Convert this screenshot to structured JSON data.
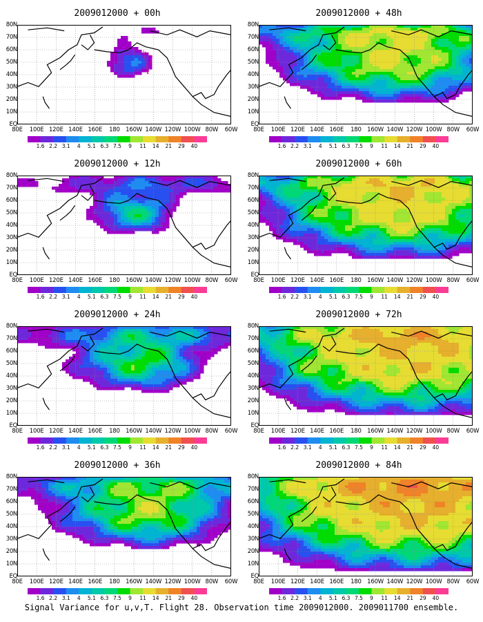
{
  "caption": "Signal Variance for u,v,T. Flight 28. Observation time 2009012000. 2009011700 ensemble.",
  "lat_labels": [
    "80N",
    "70N",
    "60N",
    "50N",
    "40N",
    "30N",
    "20N",
    "10N",
    "EQ"
  ],
  "lon_labels": [
    "80E",
    "100E",
    "120E",
    "140E",
    "160E",
    "180",
    "160W",
    "140W",
    "120W",
    "100W",
    "80W",
    "60W"
  ],
  "colorbar": {
    "labels": [
      "1.6",
      "2.2",
      "3.1",
      "4",
      "5.1",
      "6.3",
      "7.5",
      "9",
      "11",
      "14",
      "21",
      "29",
      "40"
    ],
    "colors": [
      "#a000c8",
      "#6e28dc",
      "#2850f0",
      "#1e8cf0",
      "#00b4d2",
      "#00c8aa",
      "#00d878",
      "#00dc00",
      "#a0e632",
      "#e6dc32",
      "#e6af2d",
      "#f08228",
      "#f05050",
      "#fa3c96"
    ]
  },
  "panels": [
    {
      "title": "2009012000 + 00h",
      "level": 0
    },
    {
      "title": "2009012000 + 48h",
      "level": 4
    },
    {
      "title": "2009012000 + 12h",
      "level": 1
    },
    {
      "title": "2009012000 + 60h",
      "level": 5
    },
    {
      "title": "2009012000 + 24h",
      "level": 2
    },
    {
      "title": "2009012000 + 72h",
      "level": 6
    },
    {
      "title": "2009012000 + 36h",
      "level": 3
    },
    {
      "title": "2009012000 + 84h",
      "level": 7
    }
  ]
}
